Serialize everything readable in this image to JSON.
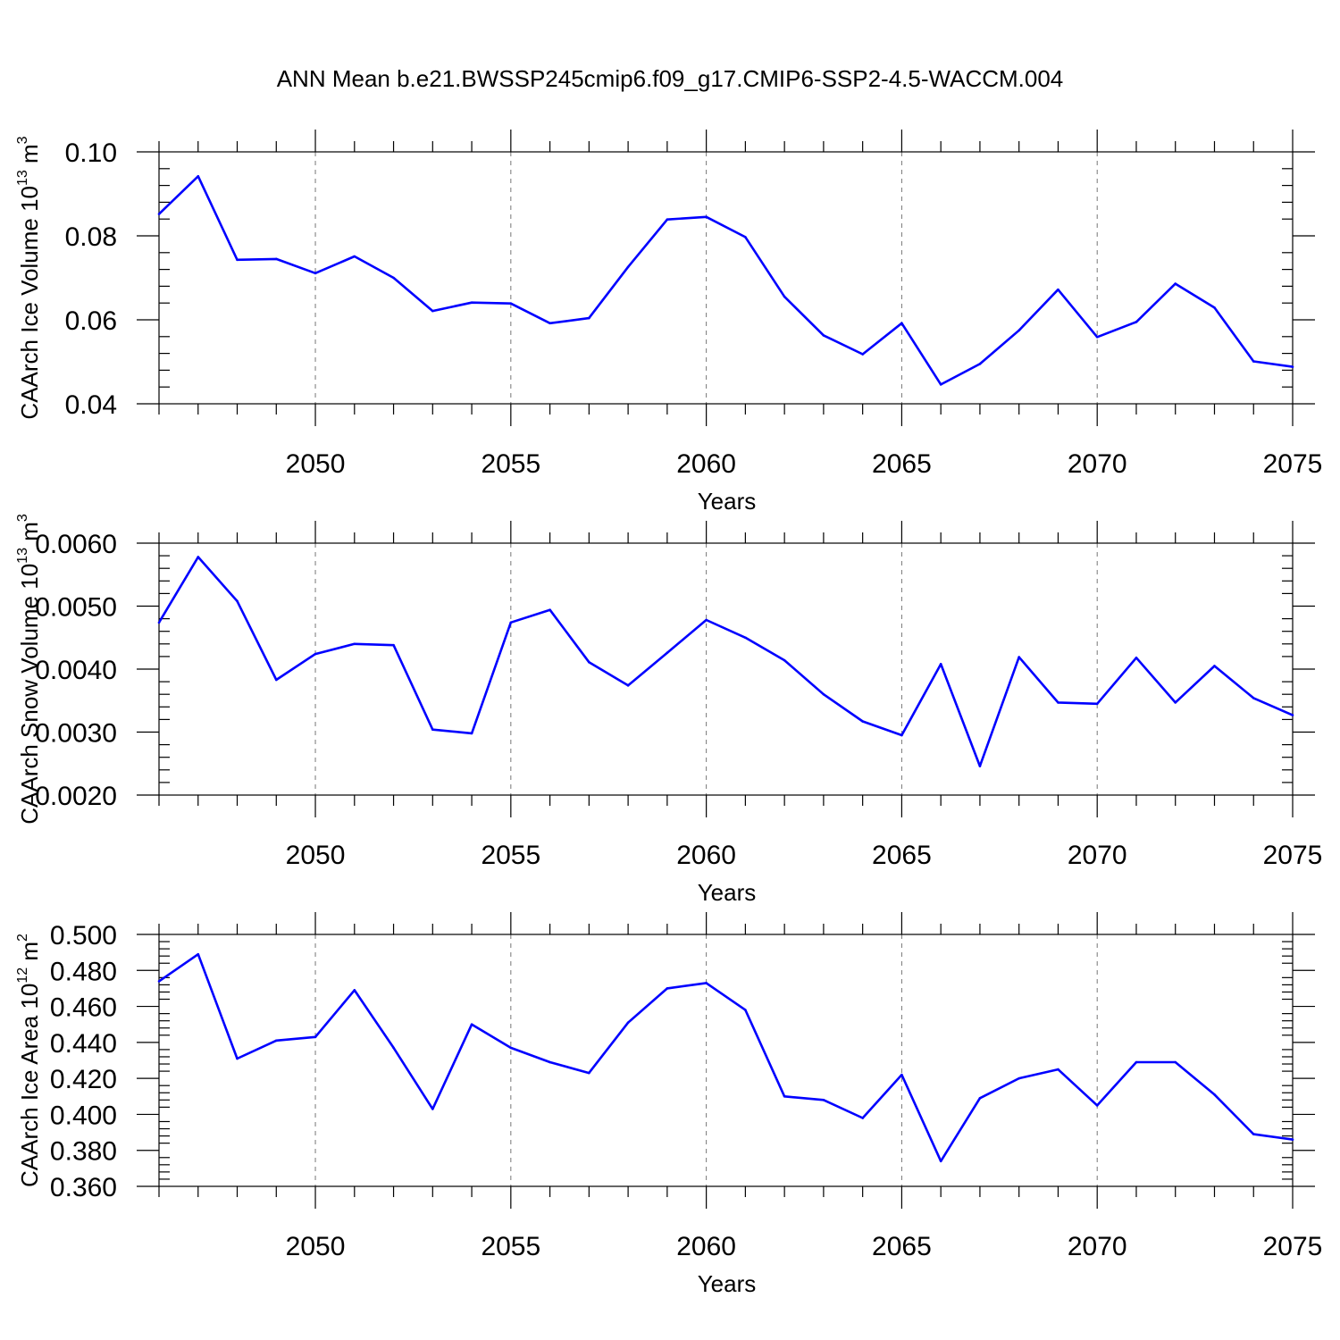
{
  "figure": {
    "title": "ANN Mean b.e21.BWSSP245cmip6.f09_g17.CMIP6-SSP2-4.5-WACCM.004",
    "line_color": "#0000ff"
  },
  "chart_data": [
    {
      "type": "line",
      "xlabel": "Years",
      "ylabel": "CAArch Ice Volume 10",
      "ylabel_sup1": "13",
      "ylabel_mid": " m",
      "ylabel_sup2": "3",
      "xlim": [
        2046,
        2075
      ],
      "ylim": [
        0.04,
        0.1
      ],
      "xticks": [
        "2050",
        "2055",
        "2060",
        "2065",
        "2070",
        "2075"
      ],
      "yticks": [
        "0.04",
        "0.06",
        "0.08",
        "0.10"
      ],
      "grid": "vertical-dashed-at-major-x",
      "x": [
        2046,
        2047,
        2048,
        2049,
        2050,
        2051,
        2052,
        2053,
        2054,
        2055,
        2056,
        2057,
        2058,
        2059,
        2060,
        2061,
        2062,
        2063,
        2064,
        2065,
        2066,
        2067,
        2068,
        2069,
        2070,
        2071,
        2072,
        2073,
        2074,
        2075
      ],
      "y": [
        0.0852,
        0.0942,
        0.0743,
        0.0745,
        0.0711,
        0.0751,
        0.07,
        0.0621,
        0.0641,
        0.0639,
        0.0592,
        0.0604,
        0.0726,
        0.0839,
        0.0845,
        0.0797,
        0.0655,
        0.0563,
        0.0518,
        0.0592,
        0.0446,
        0.0495,
        0.0575,
        0.0672,
        0.0559,
        0.0595,
        0.0686,
        0.0629,
        0.0501,
        0.0488
      ]
    },
    {
      "type": "line",
      "xlabel": "Years",
      "ylabel": "CAArch Snow Volume 10",
      "ylabel_sup1": "13",
      "ylabel_mid": " m",
      "ylabel_sup2": "3",
      "xlim": [
        2046,
        2075
      ],
      "ylim": [
        0.002,
        0.006
      ],
      "xticks": [
        "2050",
        "2055",
        "2060",
        "2065",
        "2070",
        "2075"
      ],
      "yticks": [
        "0.0020",
        "0.0030",
        "0.0040",
        "0.0050",
        "0.0060"
      ],
      "grid": "vertical-dashed-at-major-x",
      "x": [
        2046,
        2047,
        2048,
        2049,
        2050,
        2051,
        2052,
        2053,
        2054,
        2055,
        2056,
        2057,
        2058,
        2059,
        2060,
        2061,
        2062,
        2063,
        2064,
        2065,
        2066,
        2067,
        2068,
        2069,
        2070,
        2071,
        2072,
        2073,
        2074,
        2075
      ],
      "y": [
        0.00474,
        0.00578,
        0.00508,
        0.00383,
        0.00424,
        0.0044,
        0.00438,
        0.00304,
        0.00298,
        0.00474,
        0.00494,
        0.00411,
        0.00374,
        0.00426,
        0.00478,
        0.0045,
        0.00414,
        0.0036,
        0.00317,
        0.00295,
        0.00408,
        0.00246,
        0.00419,
        0.00347,
        0.00345,
        0.00418,
        0.00347,
        0.00405,
        0.00354,
        0.00327
      ]
    },
    {
      "type": "line",
      "xlabel": "Years",
      "ylabel": "CAArch Ice Area 10",
      "ylabel_sup1": "12",
      "ylabel_mid": " m",
      "ylabel_sup2": "2",
      "xlim": [
        2046,
        2075
      ],
      "ylim": [
        0.36,
        0.5
      ],
      "xticks": [
        "2050",
        "2055",
        "2060",
        "2065",
        "2070",
        "2075"
      ],
      "yticks": [
        "0.360",
        "0.380",
        "0.400",
        "0.420",
        "0.440",
        "0.460",
        "0.480",
        "0.500"
      ],
      "grid": "vertical-dashed-at-major-x",
      "x": [
        2046,
        2047,
        2048,
        2049,
        2050,
        2051,
        2052,
        2053,
        2054,
        2055,
        2056,
        2057,
        2058,
        2059,
        2060,
        2061,
        2062,
        2063,
        2064,
        2065,
        2066,
        2067,
        2068,
        2069,
        2070,
        2071,
        2072,
        2073,
        2074,
        2075
      ],
      "y": [
        0.474,
        0.489,
        0.431,
        0.441,
        0.443,
        0.469,
        0.437,
        0.403,
        0.45,
        0.437,
        0.429,
        0.423,
        0.451,
        0.47,
        0.473,
        0.458,
        0.41,
        0.408,
        0.398,
        0.422,
        0.374,
        0.409,
        0.42,
        0.425,
        0.405,
        0.429,
        0.429,
        0.411,
        0.389,
        0.386
      ]
    }
  ]
}
